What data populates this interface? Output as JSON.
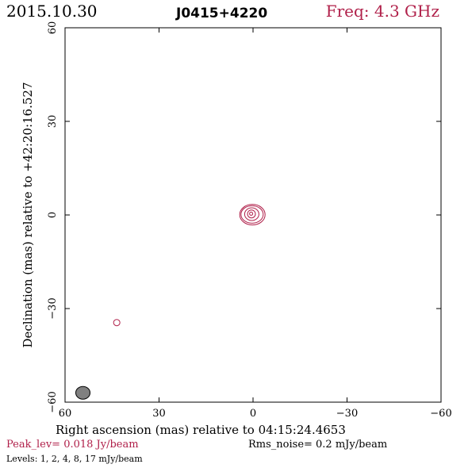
{
  "header": {
    "date": "2015.10.30",
    "source": "J0415+4220",
    "freq": "Freq: 4.3 GHz"
  },
  "chart_data": {
    "type": "contour",
    "xlabel": "Right ascension (mas) relative to 04:15:24.4653",
    "ylabel": "Declination (mas) relative to +42:20:16.527",
    "xlim": [
      60,
      -60
    ],
    "ylim": [
      -60,
      60
    ],
    "x_ticks": [
      60,
      30,
      0,
      -30,
      -60
    ],
    "x_tick_labels": [
      "60",
      "30",
      "0",
      "−30",
      "−60"
    ],
    "y_ticks": [
      -60,
      -30,
      0,
      30,
      60
    ],
    "y_tick_labels": [
      "−60",
      "−30",
      "0",
      "30",
      "60"
    ],
    "components": [
      {
        "x": 0.2,
        "y": 0.4,
        "levels_drawn": [
          1,
          2,
          4,
          8,
          17
        ]
      },
      {
        "x": 43.5,
        "y": -34.5,
        "levels_drawn": [
          1
        ]
      }
    ],
    "beam": {
      "x": 54.3,
      "y": -57.0,
      "major_mas": 4.6,
      "minor_mas": 3.8
    },
    "contour_color": "#b0204a",
    "beam_color": "#808080"
  },
  "footer": {
    "peak": "Peak_lev=  0.018 Jy/beam",
    "rms": "Rms_noise=  0.2 mJy/beam",
    "levels": "Levels:   1,   2,   4,   8,  17 mJy/beam"
  }
}
